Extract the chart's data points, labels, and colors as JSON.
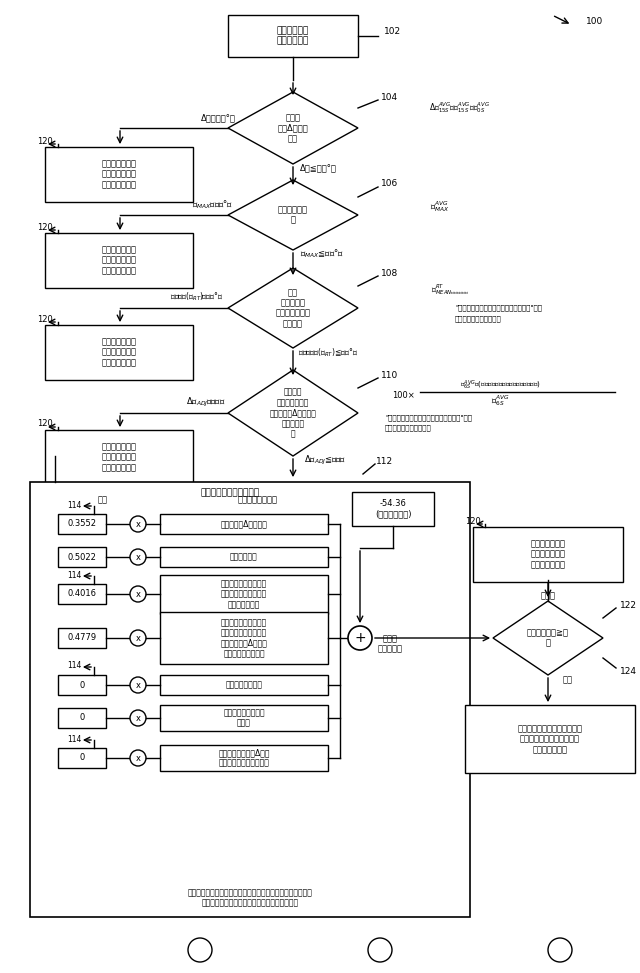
{
  "bg_color": "#ffffff",
  "line_color": "#000000",
  "fig_width": 6.4,
  "fig_height": 9.73,
  "coeff_values": [
    "0.3552",
    "0.5022",
    "0.4016",
    "0.4779",
    "0",
    "0",
    "0"
  ],
  "lda_metric_texts": [
    "１５秒でのΔ平均温度",
    "最高平均温度",
    "持続した電力段（４５\n秒～１２０秒）にわた\nる平均ＲＴ温度",
    "持続した電力段（４５\n秒～１４４秒）にわた\nる調節されたΔＲＴイ\nンピーダンス（％）",
    "平均Ｔの標準偏差",
    "リアルタイムＴの標\n準偏差",
    "最後の調節されたΔＡＶ\nＧインピーダンス（％）"
  ]
}
